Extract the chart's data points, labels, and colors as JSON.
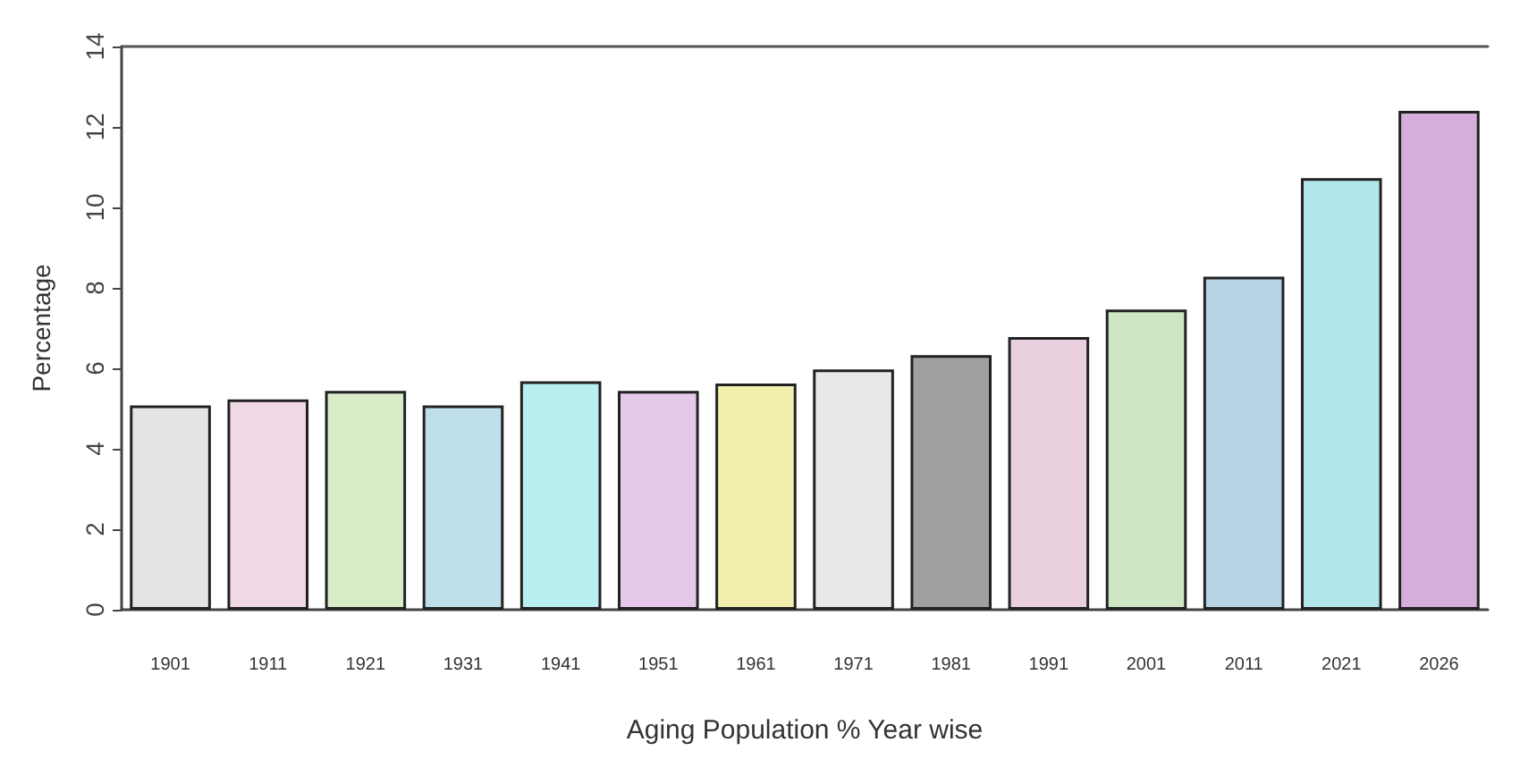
{
  "chart_data": {
    "type": "bar",
    "xlabel": "Aging Population % Year wise",
    "ylabel": "Percentage",
    "categories": [
      "1901",
      "1911",
      "1921",
      "1931",
      "1941",
      "1951",
      "1961",
      "1971",
      "1981",
      "1991",
      "2001",
      "2011",
      "2021",
      "2026"
    ],
    "values": [
      5.08,
      5.23,
      5.44,
      5.08,
      5.68,
      5.44,
      5.62,
      5.97,
      6.33,
      6.78,
      7.46,
      8.28,
      10.73,
      12.4
    ],
    "colors": [
      "#e4e4e4",
      "#f2d9e6",
      "#d9ecc8",
      "#bfe0ea",
      "#b8eef0",
      "#e6c8ea",
      "#f3efae",
      "#e8e8e8",
      "#a0a0a0",
      "#ead0de",
      "#cfe6c4",
      "#b8d4e4",
      "#b2e6ea",
      "#d6aedc"
    ],
    "ylim": [
      0,
      14
    ],
    "yticks": [
      0,
      2,
      4,
      6,
      8,
      10,
      12,
      14
    ],
    "grid": false
  }
}
